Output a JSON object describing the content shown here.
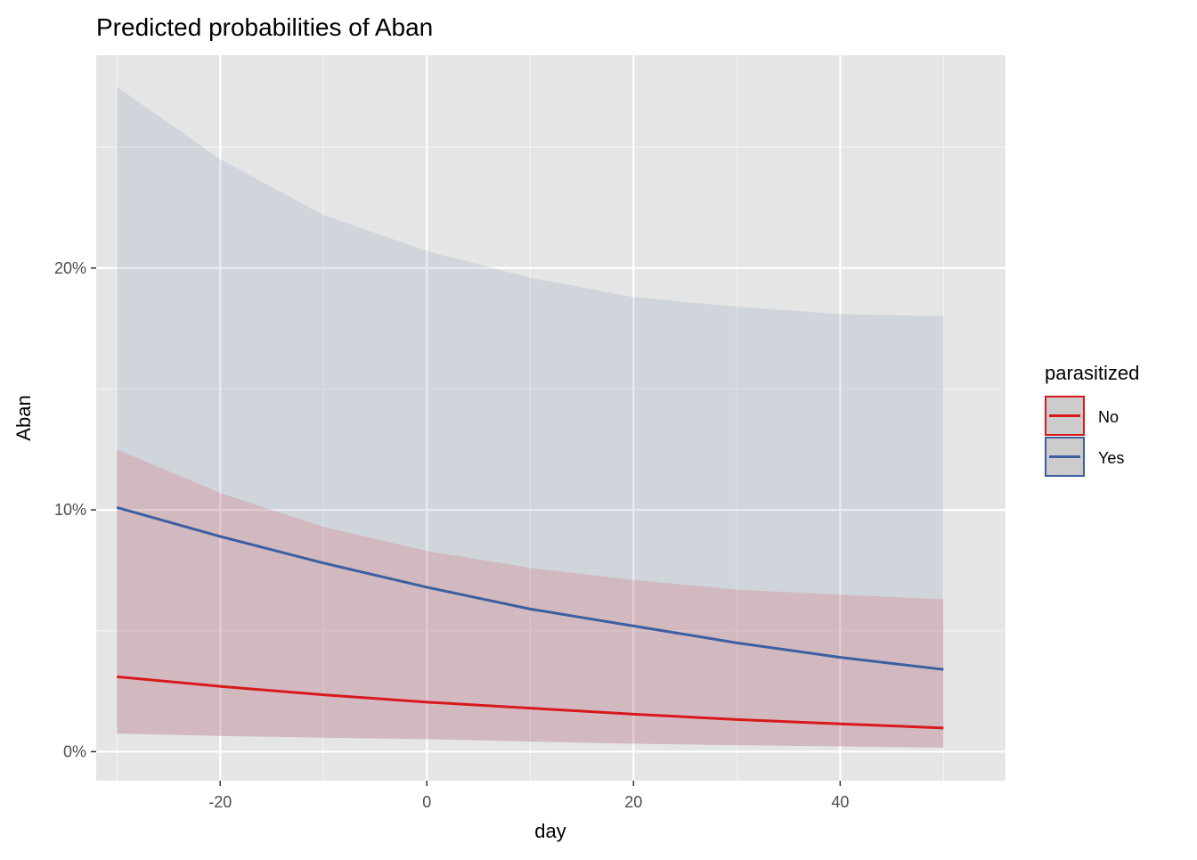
{
  "chart_data": {
    "type": "line",
    "title": "Predicted probabilities of Aban",
    "xlabel": "day",
    "ylabel": "Aban",
    "x": [
      -30,
      -20,
      -10,
      0,
      10,
      20,
      30,
      40,
      50
    ],
    "xlim": [
      -32,
      56
    ],
    "ylim": [
      -0.012,
      0.288
    ],
    "x_ticks": [
      -20,
      0,
      20,
      40
    ],
    "x_tick_labels": [
      "-20",
      "0",
      "20",
      "40"
    ],
    "y_ticks": [
      0,
      0.1,
      0.2
    ],
    "y_tick_labels": [
      "0%",
      "10%",
      "20%"
    ],
    "y_minor_ticks": [
      0.05,
      0.15,
      0.25
    ],
    "x_minor_ticks": [
      -30,
      -10,
      10,
      30,
      50
    ],
    "grid": true,
    "background": "#e5e5e5",
    "legend": {
      "title": "parasitized",
      "position": "right"
    },
    "series": [
      {
        "name": "No",
        "color": "#d7191c",
        "band_opacity": 0.15,
        "values": [
          0.031,
          0.027,
          0.0235,
          0.0205,
          0.018,
          0.0155,
          0.0133,
          0.0115,
          0.0098
        ],
        "lower": [
          0.0075,
          0.0065,
          0.0058,
          0.0052,
          0.0042,
          0.0033,
          0.0027,
          0.0022,
          0.0017
        ],
        "upper": [
          0.125,
          0.107,
          0.093,
          0.083,
          0.076,
          0.071,
          0.067,
          0.065,
          0.063
        ]
      },
      {
        "name": "Yes",
        "color": "#3b5fa0",
        "band_opacity": 0.12,
        "values": [
          0.101,
          0.089,
          0.078,
          0.068,
          0.059,
          0.052,
          0.045,
          0.039,
          0.034
        ],
        "lower": [
          0.0075,
          0.0065,
          0.0058,
          0.0052,
          0.0042,
          0.0033,
          0.0027,
          0.0022,
          0.0017
        ],
        "upper": [
          0.275,
          0.245,
          0.222,
          0.207,
          0.196,
          0.188,
          0.184,
          0.181,
          0.18
        ]
      }
    ]
  }
}
